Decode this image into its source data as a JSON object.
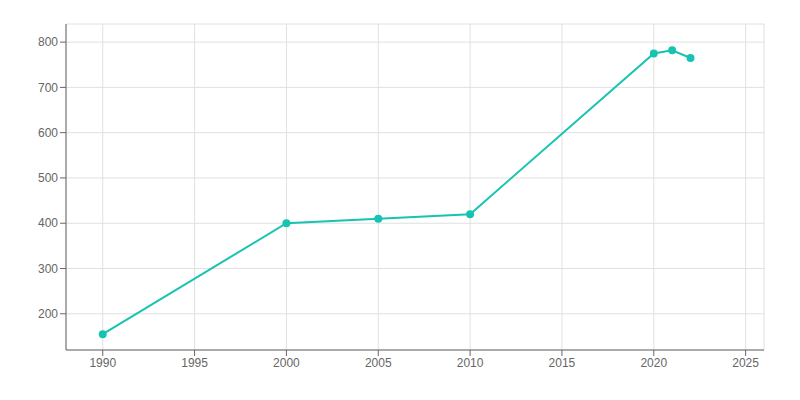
{
  "chart_data": {
    "type": "line",
    "x": [
      1990,
      2000,
      2005,
      2010,
      2020,
      2021,
      2022
    ],
    "values": [
      155,
      400,
      410,
      420,
      775,
      782,
      765
    ],
    "color": "#17C3B2",
    "marker": "circle",
    "xlim": [
      1988,
      2026
    ],
    "ylim": [
      120,
      840
    ],
    "xticks": [
      1990,
      1995,
      2000,
      2005,
      2010,
      2015,
      2020,
      2025
    ],
    "yticks": [
      200,
      300,
      400,
      500,
      600,
      700,
      800
    ],
    "grid": true
  }
}
